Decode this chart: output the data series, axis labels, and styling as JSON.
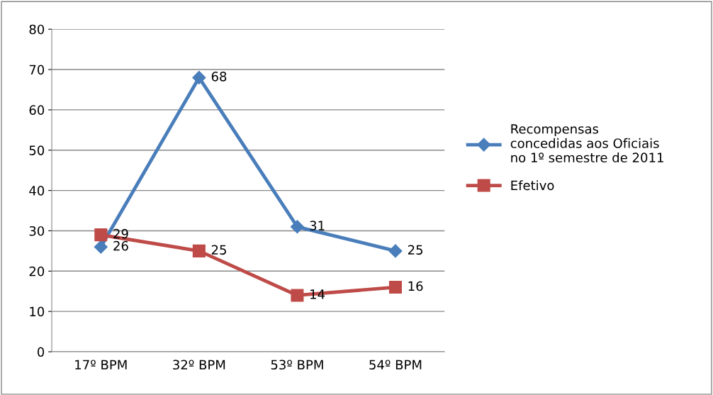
{
  "chart_data": {
    "type": "line",
    "categories": [
      "17º BPM",
      "32º BPM",
      "53º BPM",
      "54º BPM"
    ],
    "series": [
      {
        "name": "Recompensas\nconcedidas aos Oficiais\nno 1º semestre de 2011",
        "color": "#4a7ebb",
        "marker": "diamond",
        "values": [
          26,
          68,
          31,
          25
        ]
      },
      {
        "name": "Efetivo",
        "color": "#be4b48",
        "marker": "square",
        "values": [
          29,
          25,
          14,
          16
        ]
      }
    ],
    "ylim": [
      0,
      80
    ],
    "yticks": [
      0,
      10,
      20,
      30,
      40,
      50,
      60,
      70,
      80
    ],
    "grid": "y",
    "legend": "right",
    "data_labels": true,
    "line_style": "solid"
  }
}
